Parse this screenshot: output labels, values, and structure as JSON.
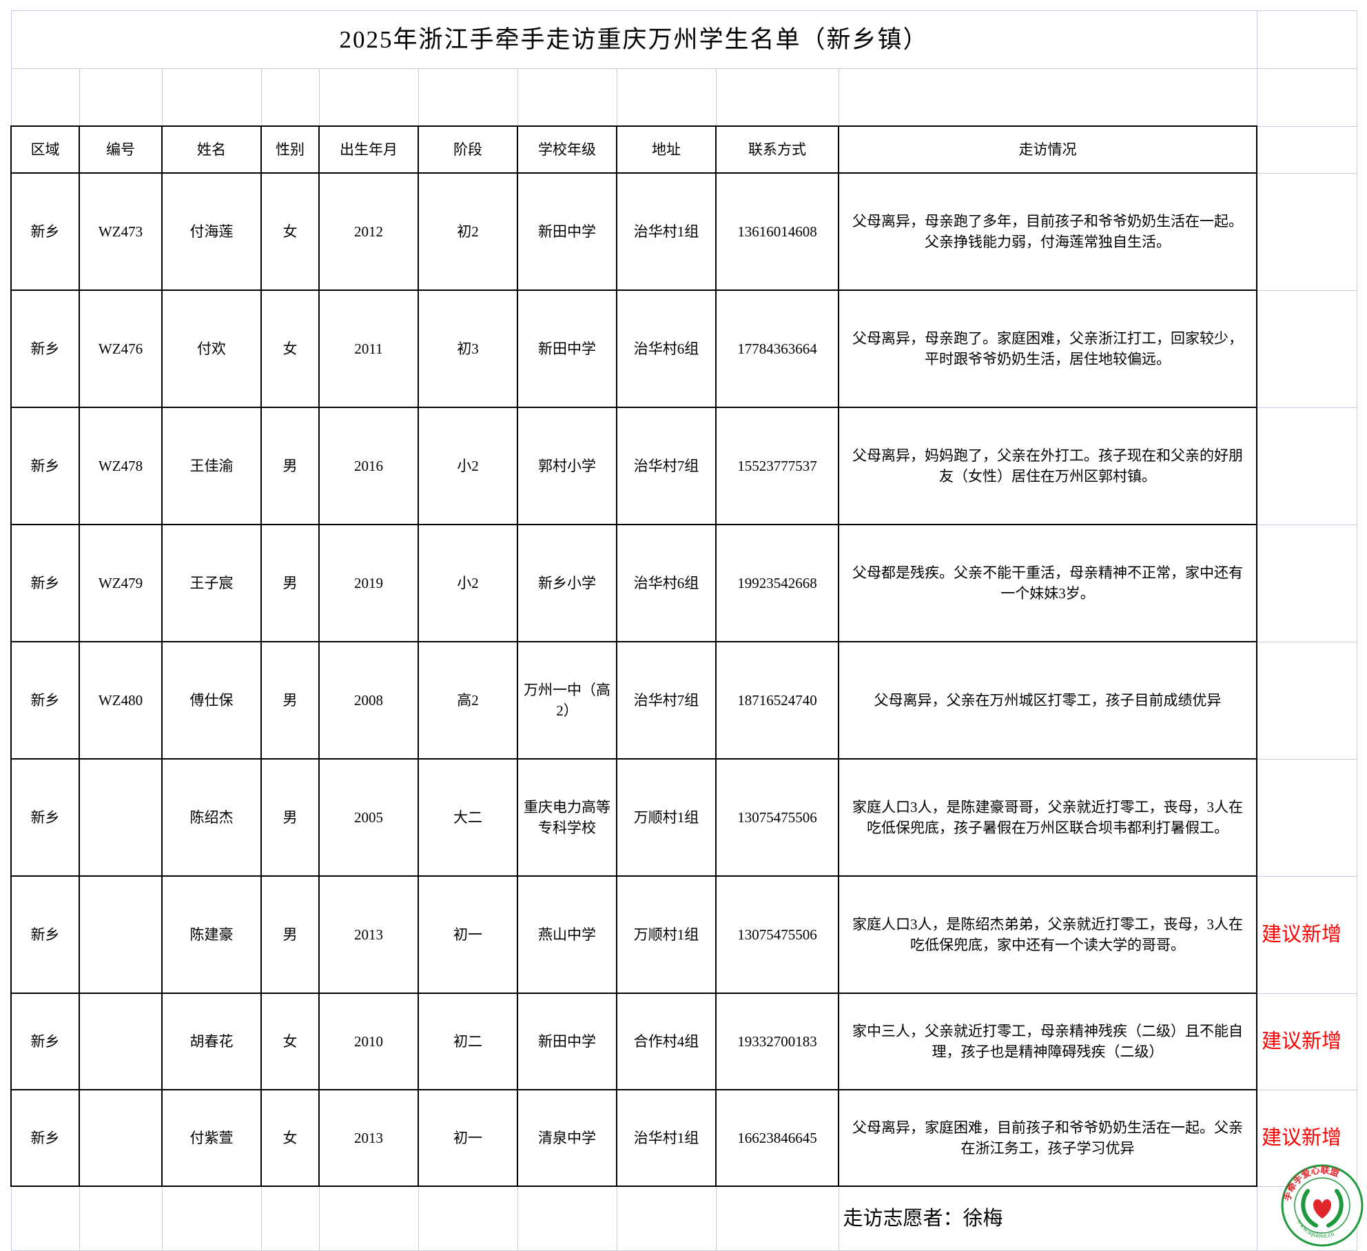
{
  "title": "2025年浙江手牵手走访重庆万州学生名单（新乡镇）",
  "headers": [
    "区域",
    "编号",
    "姓名",
    "性别",
    "出生年月",
    "阶段",
    "学校年级",
    "地址",
    "联系方式",
    "走访情况"
  ],
  "rows": [
    {
      "region": "新乡",
      "id": "WZ473",
      "name": "付海莲",
      "gender": "女",
      "birth": "2012",
      "stage": "初2",
      "school": "新田中学",
      "address": "治华村1组",
      "phone": "13616014608",
      "note": "父母离异，母亲跑了多年，目前孩子和爷爷奶奶生活在一起。父亲挣钱能力弱，付海莲常独自生活。",
      "remark": ""
    },
    {
      "region": "新乡",
      "id": "WZ476",
      "name": "付欢",
      "gender": "女",
      "birth": "2011",
      "stage": "初3",
      "school": "新田中学",
      "address": "治华村6组",
      "phone": "17784363664",
      "note": "父母离异，母亲跑了。家庭困难，父亲浙江打工，回家较少，平时跟爷爷奶奶生活，居住地较偏远。",
      "remark": ""
    },
    {
      "region": "新乡",
      "id": "WZ478",
      "name": "王佳渝",
      "gender": "男",
      "birth": "2016",
      "stage": "小2",
      "school": "郭村小学",
      "address": "治华村7组",
      "phone": "15523777537",
      "note": "父母离异，妈妈跑了，父亲在外打工。孩子现在和父亲的好朋友（女性）居住在万州区郭村镇。",
      "remark": ""
    },
    {
      "region": "新乡",
      "id": "WZ479",
      "name": "王子宸",
      "gender": "男",
      "birth": "2019",
      "stage": "小2",
      "school": "新乡小学",
      "address": "治华村6组",
      "phone": "19923542668",
      "note": "父母都是残疾。父亲不能干重活，母亲精神不正常，家中还有一个妹妹3岁。",
      "remark": ""
    },
    {
      "region": "新乡",
      "id": "WZ480",
      "name": "傅仕保",
      "gender": "男",
      "birth": "2008",
      "stage": "高2",
      "school": "万州一中（高2）",
      "address": "治华村7组",
      "phone": "18716524740",
      "note": "父母离异，父亲在万州城区打零工，孩子目前成绩优异",
      "remark": ""
    },
    {
      "region": "新乡",
      "id": "",
      "name": "陈绍杰",
      "gender": "男",
      "birth": "2005",
      "stage": "大二",
      "school": "重庆电力高等专科学校",
      "address": "万顺村1组",
      "phone": "13075475506",
      "note": "家庭人口3人，是陈建豪哥哥，父亲就近打零工，丧母，3人在吃低保兜底，孩子暑假在万州区联合坝韦都利打暑假工。",
      "remark": ""
    },
    {
      "region": "新乡",
      "id": "",
      "name": "陈建豪",
      "gender": "男",
      "birth": "2013",
      "stage": "初一",
      "school": "燕山中学",
      "address": "万顺村1组",
      "phone": "13075475506",
      "note": "家庭人口3人，是陈绍杰弟弟，父亲就近打零工，丧母，3人在吃低保兜底，家中还有一个读大学的哥哥。",
      "remark": "建议新增"
    },
    {
      "region": "新乡",
      "id": "",
      "name": "胡春花",
      "gender": "女",
      "birth": "2010",
      "stage": "初二",
      "school": "新田中学",
      "address": "合作村4组",
      "phone": "19332700183",
      "note": "家中三人，父亲就近打零工，母亲精神残疾（二级）且不能自理，孩子也是精神障碍残疾（二级）",
      "remark": "建议新增"
    },
    {
      "region": "新乡",
      "id": "",
      "name": "付紫萱",
      "gender": "女",
      "birth": "2013",
      "stage": "初一",
      "school": "清泉中学",
      "address": "治华村1组",
      "phone": "16623846645",
      "note": "父母离异，家庭困难，目前孩子和爷爷奶奶生活在一起。父亲在浙江务工，孩子学习优异",
      "remark": "建议新增"
    }
  ],
  "footer": {
    "volunteer": "走访志愿者：徐梅"
  },
  "logo": {
    "top_text": "手牵手爱心联盟",
    "url_text": "www.sqslove.cn"
  },
  "colors": {
    "remark": "#ff0000",
    "logo_green": "#1e9a3c",
    "logo_red": "#e0262b",
    "grid": "#c6cbe0"
  }
}
